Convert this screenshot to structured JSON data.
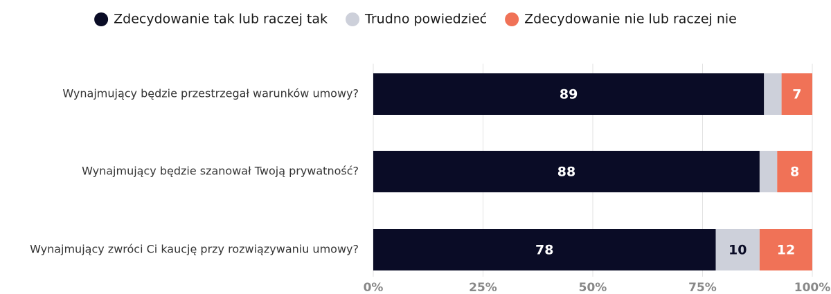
{
  "chart_data": {
    "type": "stacked_barh",
    "categories": [
      "Wynajmujący będzie przestrzegał warunków umowy?",
      "Wynajmujący będzie szanował Twoją prywatność?",
      "Wynajmujący zwróci Ci kaucję przy rozwiązywaniu umowy?"
    ],
    "series": [
      {
        "name": "Zdecydowanie tak lub raczej tak",
        "color": "#0a0c26",
        "values": [
          89,
          88,
          78
        ]
      },
      {
        "name": "Trudno powiedzieć",
        "color": "#cdd0da",
        "values": [
          4,
          4,
          10
        ]
      },
      {
        "name": "Zdecydowanie nie lub raczej nie",
        "color": "#f07257",
        "values": [
          7,
          8,
          12
        ]
      }
    ],
    "xlim": [
      0,
      100
    ],
    "xticks": [
      {
        "value": 0,
        "label": "0%"
      },
      {
        "value": 25,
        "label": "25%"
      },
      {
        "value": 50,
        "label": "50%"
      },
      {
        "value": 75,
        "label": "75%"
      },
      {
        "value": 100,
        "label": "100%"
      }
    ],
    "grid": true,
    "legend": "top"
  }
}
